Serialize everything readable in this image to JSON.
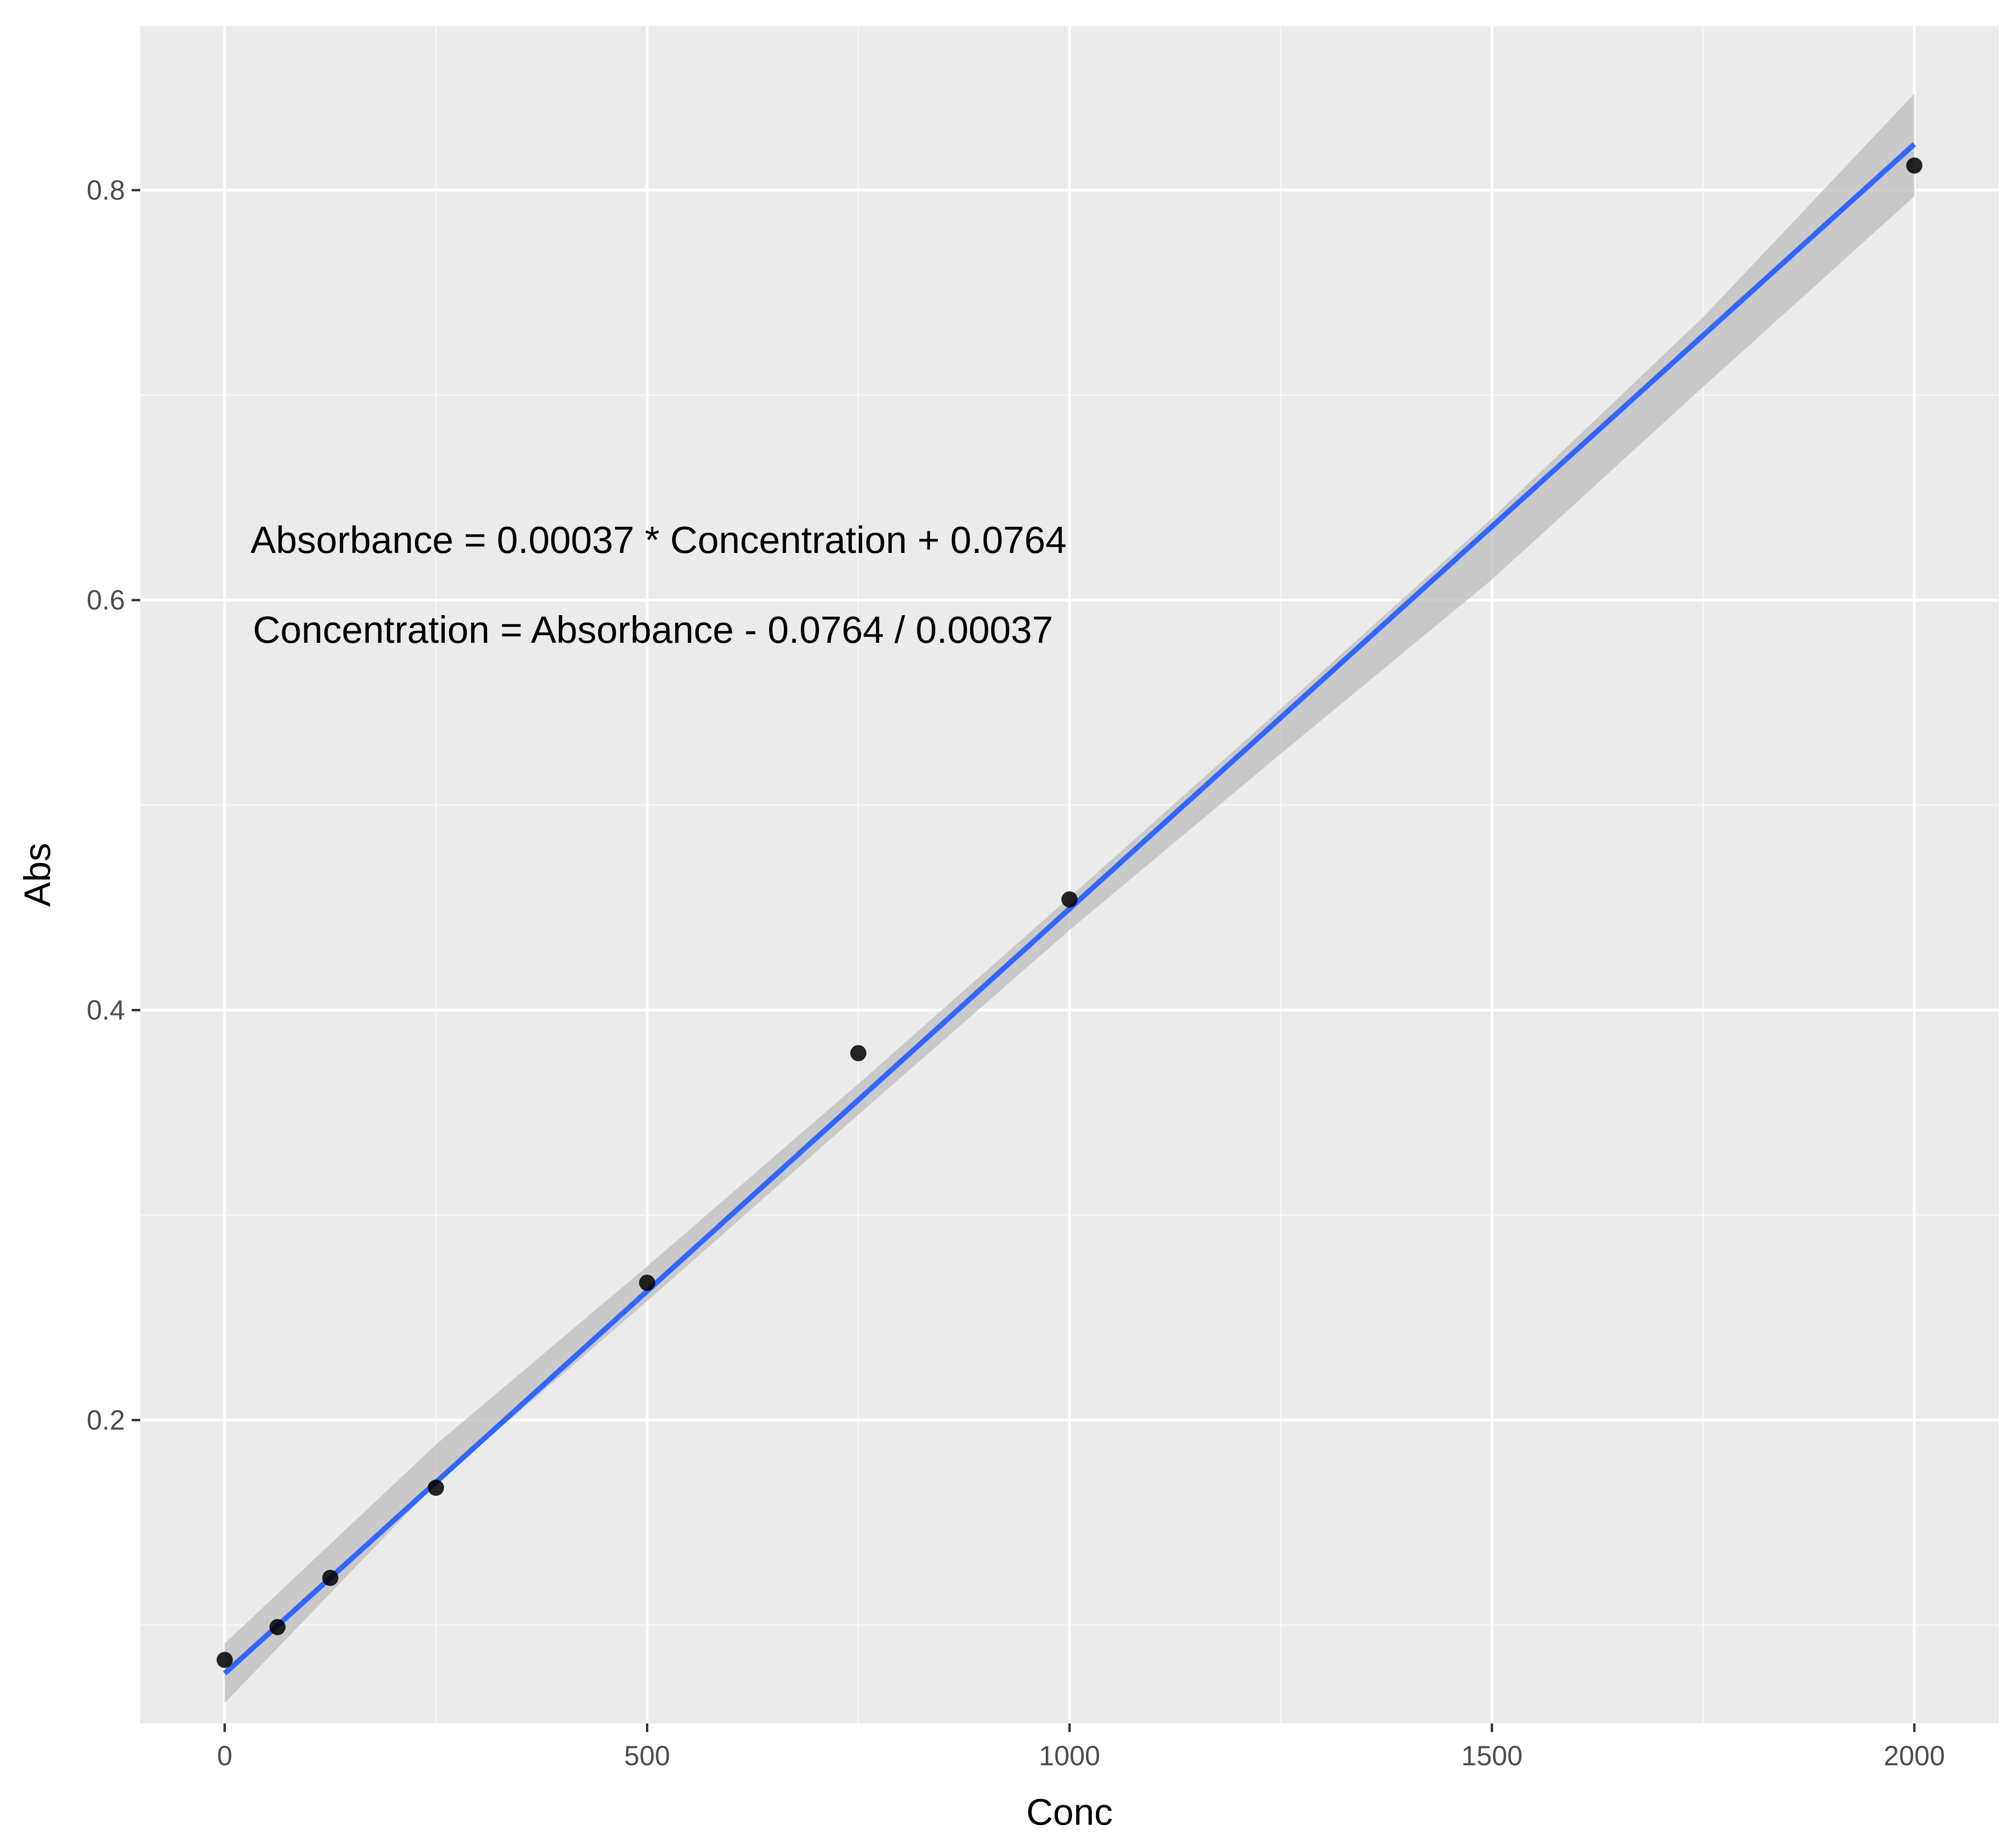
{
  "chart_data": {
    "type": "scatter",
    "xlabel": "Conc",
    "ylabel": "Abs",
    "xlim": [
      -100,
      2100
    ],
    "ylim": [
      0.052,
      0.88
    ],
    "x_ticks": [
      0,
      500,
      1000,
      1500,
      2000
    ],
    "x_tick_labels": [
      "0",
      "500",
      "1000",
      "1500",
      "2000"
    ],
    "y_ticks": [
      0.2,
      0.4,
      0.6,
      0.8
    ],
    "y_tick_labels": [
      "0.2",
      "0.4",
      "0.6",
      "0.8"
    ],
    "grid": true,
    "legend": "none",
    "series": [
      {
        "type": "scatter",
        "x": [
          0,
          62.5,
          125,
          250,
          500,
          750,
          1000,
          2000
        ],
        "y": [
          0.083,
          0.099,
          0.123,
          0.167,
          0.267,
          0.379,
          0.454,
          0.812
        ],
        "color": "#000000"
      },
      {
        "type": "line",
        "fit": "linear",
        "x": [
          0,
          2000
        ],
        "y": [
          0.0764,
          0.8224
        ],
        "color": "#3366ff",
        "confidence_band": {
          "x": [
            0,
            250,
            500,
            750,
            1000,
            1250,
            1500,
            1750,
            2000
          ],
          "lower": [
            0.062,
            0.169,
            0.258,
            0.349,
            0.439,
            0.525,
            0.61,
            0.704,
            0.797
          ],
          "upper": [
            0.091,
            0.188,
            0.275,
            0.364,
            0.455,
            0.547,
            0.64,
            0.738,
            0.847
          ],
          "color": "#bebebe"
        }
      }
    ],
    "annotations": [
      "Absorbance = 0.00037 * Concentration + 0.0764",
      "Concentration = Absorbance -  0.0764 / 0.00037"
    ],
    "colors": {
      "panel_background": "#ebebeb",
      "grid_major": "#ffffff",
      "grid_minor": "#f7f7f7",
      "fit_line": "#3366ff",
      "band": "#bebebe",
      "points": "#000000"
    }
  }
}
